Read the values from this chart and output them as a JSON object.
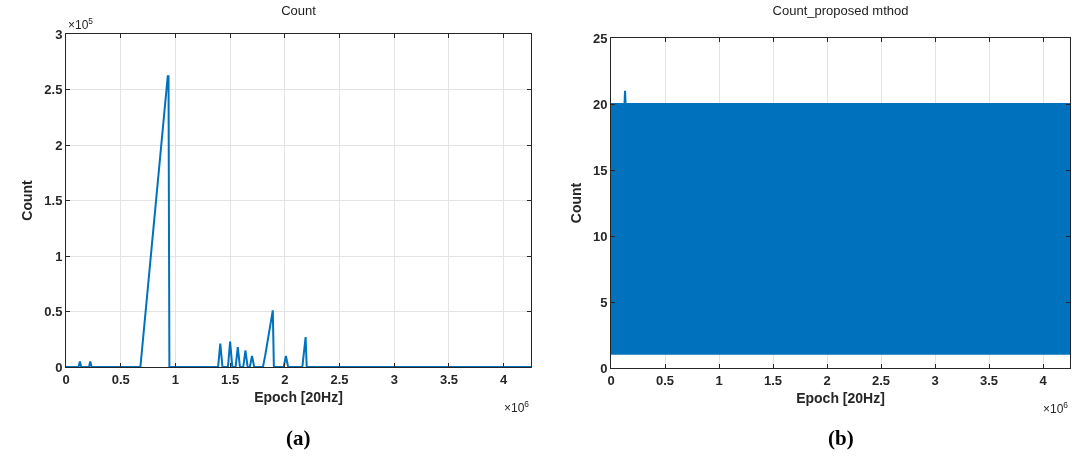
{
  "chart_data": [
    {
      "type": "line",
      "title": "Count",
      "xlabel": "Epoch [20Hz]",
      "ylabel": "Count",
      "series": [
        {
          "color": "#0072bd",
          "x": [
            0,
            0.115,
            0.127,
            0.139,
            0.21,
            0.222,
            0.234,
            0.68,
            0.93,
            0.937,
            0.945,
            1.39,
            1.41,
            1.43,
            1.48,
            1.5,
            1.52,
            1.55,
            1.57,
            1.59,
            1.62,
            1.64,
            1.66,
            1.68,
            1.7,
            1.72,
            1.8,
            1.82,
            1.89,
            1.9,
            1.99,
            2.01,
            2.03,
            2.16,
            2.19,
            2.2,
            4.25
          ],
          "values": [
            0,
            0,
            0.05,
            0,
            0,
            0.05,
            0,
            0,
            2.62,
            2.62,
            0,
            0,
            0.21,
            0,
            0,
            0.23,
            0,
            0,
            0.18,
            0,
            0,
            0.15,
            0,
            0,
            0.1,
            0,
            0,
            0.1,
            0.51,
            0,
            0,
            0.1,
            0,
            0,
            0.27,
            0,
            0
          ]
        }
      ],
      "xlim": [
        0,
        4.25
      ],
      "xticks": [
        0,
        0.5,
        1,
        1.5,
        2,
        2.5,
        3,
        3.5,
        4
      ],
      "ylim": [
        0,
        3
      ],
      "yticks": [
        0,
        0.5,
        1,
        1.5,
        2,
        2.5,
        3
      ],
      "grid": true,
      "line_style": "solid",
      "annotations": [
        "×10$^{5}$",
        "×10$^{6}$",
        "(a)"
      ]
    },
    {
      "type": "line",
      "title": "Count_proposed mthod",
      "xlabel": "Epoch [20Hz]",
      "ylabel": "Count",
      "series": [
        {
          "color": "#0072bd",
          "x": [
            0,
            0.125,
            0.13,
            0.135,
            4.25
          ],
          "values": [
            20,
            20,
            21,
            20,
            20
          ],
          "lower": [
            1,
            1,
            1,
            1,
            1
          ],
          "upper": [
            20,
            20,
            20,
            20,
            20
          ]
        }
      ],
      "xlim": [
        0,
        4.25
      ],
      "xticks": [
        0,
        0.5,
        1,
        1.5,
        2,
        2.5,
        3,
        3.5,
        4
      ],
      "ylim": [
        0,
        25
      ],
      "yticks": [
        0,
        5,
        10,
        15,
        20,
        25
      ],
      "grid": true,
      "line_style": "solid",
      "annotations": [
        "×10$^{6}$",
        "(b)"
      ]
    }
  ]
}
